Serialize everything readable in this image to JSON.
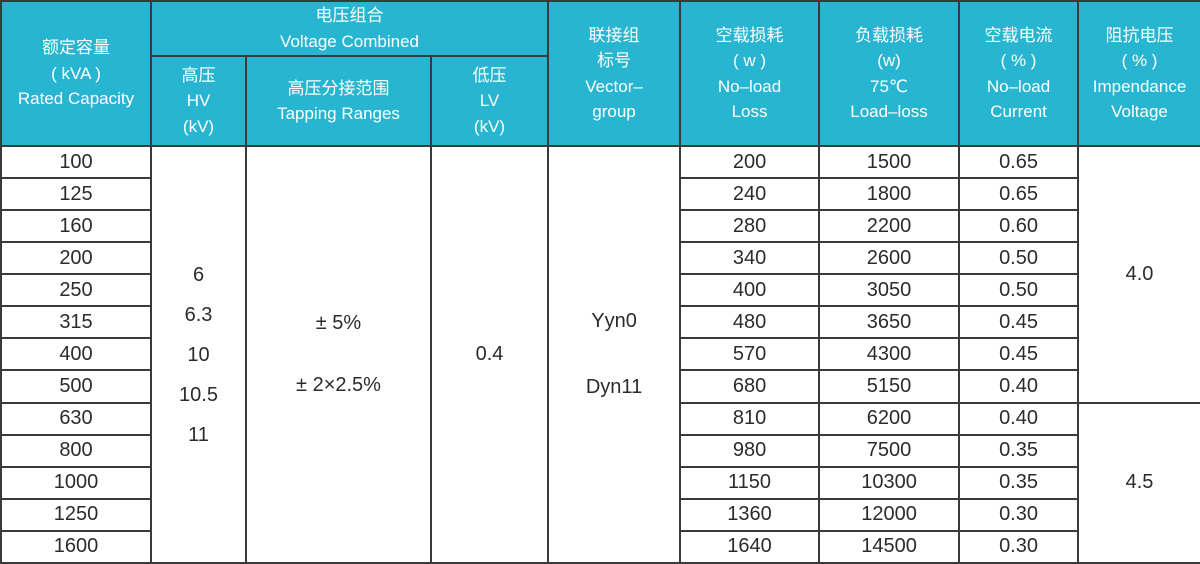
{
  "table": {
    "headers": {
      "capacity": "额定容量\n( kVA )\nRated Capacity",
      "voltage_combined": "电压组合\nVoltage Combined",
      "hv": "高压\nHV\n(kV)",
      "tapping": "高压分接范围\nTapping Ranges",
      "lv": "低压\nLV\n(kV)",
      "vector": "联接组\n标号\nVector–\ngroup",
      "noload_loss": "空载损耗\n( w )\nNo–load\nLoss",
      "load_loss": "负载损耗\n(w)\n75℃\nLoad–loss",
      "noload_current": "空载电流\n( % )\nNo–load\nCurrent",
      "impedance": "阻抗电压\n( % )\nImpendance\nVoltage"
    },
    "merged": {
      "hv": "6\n6.3\n10\n10.5\n11",
      "tapping": "± 5%\n\n± 2×2.5%",
      "lv": "0.4",
      "vector": "Yyn0\n\nDyn11"
    },
    "impedance": {
      "values": [
        "4.0",
        "4.5"
      ],
      "spans": [
        8,
        5
      ]
    },
    "rows": [
      {
        "capacity": "100",
        "noload_loss": "200",
        "load_loss": "1500",
        "current": "0.65"
      },
      {
        "capacity": "125",
        "noload_loss": "240",
        "load_loss": "1800",
        "current": "0.65"
      },
      {
        "capacity": "160",
        "noload_loss": "280",
        "load_loss": "2200",
        "current": "0.60"
      },
      {
        "capacity": "200",
        "noload_loss": "340",
        "load_loss": "2600",
        "current": "0.50"
      },
      {
        "capacity": "250",
        "noload_loss": "400",
        "load_loss": "3050",
        "current": "0.50"
      },
      {
        "capacity": "315",
        "noload_loss": "480",
        "load_loss": "3650",
        "current": "0.45"
      },
      {
        "capacity": "400",
        "noload_loss": "570",
        "load_loss": "4300",
        "current": "0.45"
      },
      {
        "capacity": "500",
        "noload_loss": "680",
        "load_loss": "5150",
        "current": "0.40"
      },
      {
        "capacity": "630",
        "noload_loss": "810",
        "load_loss": "6200",
        "current": "0.40"
      },
      {
        "capacity": "800",
        "noload_loss": "980",
        "load_loss": "7500",
        "current": "0.35"
      },
      {
        "capacity": "1000",
        "noload_loss": "1150",
        "load_loss": "10300",
        "current": "0.35"
      },
      {
        "capacity": "1250",
        "noload_loss": "1360",
        "load_loss": "12000",
        "current": "0.30"
      },
      {
        "capacity": "1600",
        "noload_loss": "1640",
        "load_loss": "14500",
        "current": "0.30"
      }
    ],
    "colors": {
      "header_bg": "#27b5d1",
      "header_text": "#ffffff",
      "shaded_cell": "#f0f0ef",
      "body_text": "#2b2b2b",
      "border": "#3a3a3a"
    }
  }
}
